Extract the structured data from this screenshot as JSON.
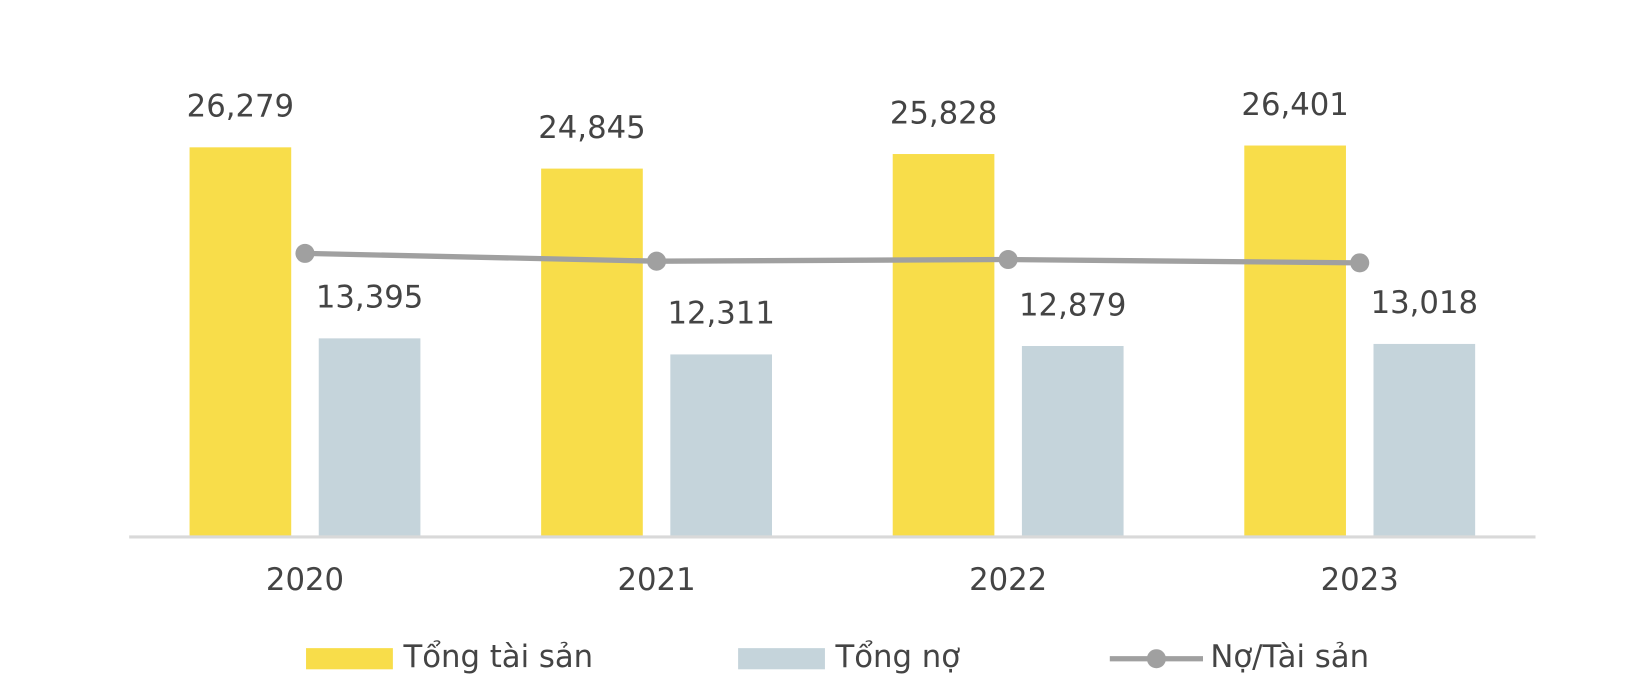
{
  "chart_data": {
    "type": "bar",
    "categories": [
      "2020",
      "2021",
      "2022",
      "2023"
    ],
    "series": [
      {
        "name": "Tổng tài sản",
        "color": "#f8dd4a",
        "values": [
          26279,
          24845,
          25828,
          26401
        ],
        "value_labels": [
          "26,279",
          "24,845",
          "25,828",
          "26,401"
        ]
      },
      {
        "name": "Tổng nợ",
        "color": "#c5d4db",
        "values": [
          13395,
          12311,
          12879,
          13018
        ],
        "value_labels": [
          "13,395",
          "12,311",
          "12,879",
          "13,018"
        ]
      },
      {
        "name": "Nợ/Tài sản",
        "type": "line",
        "axis": "y2",
        "color": "#a0a0a0",
        "values": [
          51.0,
          49.6,
          49.9,
          49.3
        ]
      }
    ],
    "ylim": [
      0,
      30000
    ],
    "y2lim": [
      0,
      80
    ],
    "legend": "bottom"
  }
}
